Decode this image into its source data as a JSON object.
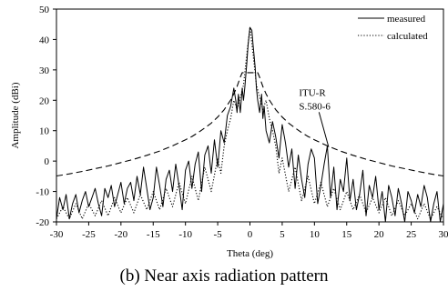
{
  "caption": "(b) Near axis radiation pattern",
  "chart_data": {
    "type": "line",
    "title": "",
    "xlabel": "Theta (deg)",
    "ylabel": "Amplitude (dBi)",
    "xlim": [
      -30,
      30
    ],
    "ylim": [
      -20,
      50
    ],
    "xticks": [
      -30,
      -25,
      -20,
      -15,
      -10,
      -5,
      0,
      5,
      10,
      15,
      20,
      25,
      30
    ],
    "yticks": [
      -20,
      -10,
      0,
      10,
      20,
      30,
      40,
      50
    ],
    "legend_position": "top-right",
    "grid": false,
    "annotations": [
      {
        "text": "ITU-R",
        "x": 7.6,
        "y": 21.5
      },
      {
        "text": "S.580-6",
        "x": 7.6,
        "y": 17.0
      }
    ],
    "series": [
      {
        "name": "measured",
        "style": "solid",
        "x": [
          -30,
          -29.5,
          -29,
          -28.5,
          -28,
          -27.5,
          -27,
          -26.5,
          -26,
          -25.5,
          -25,
          -24.5,
          -24,
          -23.5,
          -23,
          -22.5,
          -22,
          -21.5,
          -21,
          -20.5,
          -20,
          -19.5,
          -19,
          -18.5,
          -18,
          -17.5,
          -17,
          -16.5,
          -16,
          -15.5,
          -15,
          -14.5,
          -14,
          -13.5,
          -13,
          -12.5,
          -12,
          -11.5,
          -11,
          -10.5,
          -10,
          -9.5,
          -9,
          -8.5,
          -8,
          -7.5,
          -7,
          -6.5,
          -6,
          -5.5,
          -5,
          -4.5,
          -4,
          -3.5,
          -3,
          -2.5,
          -2.2,
          -2,
          -1.8,
          -1.5,
          -1.2,
          -1,
          -0.8,
          -0.5,
          -0.3,
          0,
          0.3,
          0.5,
          0.8,
          1,
          1.2,
          1.5,
          1.8,
          2,
          2.2,
          2.5,
          3,
          3.5,
          4,
          4.5,
          5,
          5.5,
          6,
          6.5,
          7,
          7.5,
          8,
          8.5,
          9,
          9.5,
          10,
          10.5,
          11,
          11.5,
          12,
          12.5,
          13,
          13.5,
          14,
          14.5,
          15,
          15.5,
          16,
          16.5,
          17,
          17.5,
          18,
          18.5,
          19,
          19.5,
          20,
          20.5,
          21,
          21.5,
          22,
          22.5,
          23,
          23.5,
          24,
          24.5,
          25,
          25.5,
          26,
          26.5,
          27,
          27.5,
          28,
          28.5,
          29,
          29.5,
          30
        ],
        "y": [
          -19,
          -12,
          -16,
          -11,
          -19,
          -14,
          -11,
          -17,
          -13,
          -10,
          -15,
          -12,
          -9,
          -14,
          -18,
          -9,
          -12,
          -8,
          -15,
          -11,
          -7,
          -14,
          -9,
          -7,
          -13,
          -5,
          -11,
          -2,
          -9,
          -16,
          -12,
          -2,
          -8,
          -15,
          -6,
          -3,
          -10,
          -1,
          -8,
          -16,
          -3,
          0,
          -9,
          -1,
          3,
          -10,
          2,
          5,
          -4,
          7,
          -2,
          10,
          6,
          15,
          18,
          24,
          20,
          16,
          22,
          16,
          24,
          20,
          24,
          32,
          38,
          44,
          43,
          38,
          31,
          24,
          20,
          16,
          22,
          14,
          18,
          10,
          6,
          13,
          8,
          1,
          12,
          6,
          -2,
          4,
          -9,
          2,
          -6,
          -12,
          -1,
          4,
          1,
          -14,
          -8,
          -1,
          5,
          -12,
          -2,
          -16,
          -6,
          -10,
          1,
          -13,
          -6,
          -16,
          -11,
          -3,
          -18,
          -8,
          -12,
          -5,
          -16,
          -10,
          -20,
          -8,
          -12,
          -18,
          -9,
          -14,
          -20,
          -10,
          -13,
          -17,
          -11,
          -15,
          -8,
          -12,
          -20,
          -14,
          -10,
          -20,
          -14
        ]
      },
      {
        "name": "calculated",
        "style": "dotted",
        "x": [
          -30,
          -29,
          -28,
          -27,
          -26,
          -25,
          -24,
          -23,
          -22,
          -21,
          -20,
          -19,
          -18,
          -17,
          -16,
          -15,
          -14,
          -13,
          -12,
          -11,
          -10,
          -9,
          -8,
          -7,
          -6,
          -5,
          -4.5,
          -4,
          -3.5,
          -3,
          -2.5,
          -2,
          -1.5,
          -1,
          -0.5,
          0,
          0.5,
          1,
          1.5,
          2,
          2.5,
          3,
          3.5,
          4,
          4.5,
          5,
          6,
          7,
          8,
          9,
          10,
          11,
          12,
          13,
          14,
          15,
          16,
          17,
          18,
          19,
          20,
          21,
          22,
          23,
          24,
          25,
          26,
          27,
          28,
          29,
          30
        ],
        "y": [
          -19,
          -15,
          -19,
          -14,
          -19,
          -14,
          -18,
          -13,
          -18,
          -12,
          -17,
          -12,
          -17,
          -11,
          -16,
          -10,
          -16,
          -9,
          -15,
          -7,
          -14,
          -5,
          -13,
          -2,
          -10,
          1,
          -4,
          5,
          10,
          14,
          20,
          17,
          21,
          25,
          35,
          44,
          35,
          25,
          21,
          17,
          20,
          14,
          10,
          5,
          -4,
          1,
          -10,
          -2,
          -13,
          -5,
          -14,
          -7,
          -15,
          -9,
          -16,
          -10,
          -16,
          -11,
          -17,
          -12,
          -17,
          -12,
          -18,
          -13,
          -18,
          -14,
          -19,
          -14,
          -19,
          -15,
          -19
        ]
      },
      {
        "name": "ITU-R S.580-6",
        "style": "dashed",
        "x": [
          -30,
          -28,
          -26,
          -24,
          -22,
          -20,
          -18,
          -16,
          -14,
          -12,
          -10,
          -9,
          -8,
          -7,
          -6,
          -5,
          -4,
          -3,
          -2.5,
          -2,
          -1.5,
          -1.2,
          -1,
          1,
          1.2,
          1.5,
          2,
          2.5,
          3,
          4,
          5,
          6,
          7,
          8,
          9,
          10,
          12,
          14,
          16,
          18,
          20,
          22,
          24,
          26,
          28,
          30
        ],
        "y": [
          -4.9,
          -4.2,
          -3.4,
          -2.5,
          -1.6,
          -0.5,
          0.6,
          1.9,
          3.3,
          5.0,
          7.0,
          8.1,
          9.4,
          10.9,
          12.5,
          14.5,
          16.9,
          20.1,
          22.1,
          24.5,
          27.6,
          29.1,
          29.1,
          29.1,
          29.1,
          27.6,
          24.5,
          22.1,
          20.1,
          16.9,
          14.5,
          12.5,
          10.9,
          9.4,
          8.1,
          7.0,
          5.0,
          3.3,
          1.9,
          0.6,
          -0.5,
          -1.6,
          -2.5,
          -3.4,
          -4.2,
          -4.9
        ]
      }
    ]
  }
}
